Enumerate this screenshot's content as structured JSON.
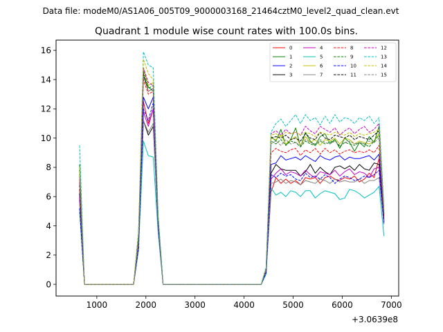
{
  "chart_data": {
    "type": "line",
    "suptitle": "Data file: modeM0/AS1A06_005T09_9000003168_21464cztM0_level2_quad_clean.evt",
    "title": "Quadrant 1 module wise count rates with 100.0s bins.",
    "xlabel": "",
    "ylabel": "",
    "x_offset_label": "+3.0639e8",
    "xlim": [
      170,
      7150
    ],
    "ylim": [
      -0.8,
      16.7
    ],
    "x_ticks": [
      1000,
      2000,
      3000,
      4000,
      5000,
      6000,
      7000
    ],
    "y_ticks": [
      0,
      2,
      4,
      6,
      8,
      10,
      12,
      14,
      16
    ],
    "grid": false,
    "legend_location": "upper right",
    "legend_columns": 4,
    "x": [
      650,
      750,
      1750,
      1850,
      1950,
      2050,
      2150,
      2250,
      2350,
      4350,
      4450,
      4550,
      4650,
      4750,
      4850,
      4950,
      5050,
      5150,
      5250,
      5350,
      5450,
      5550,
      5650,
      5750,
      5850,
      5950,
      6050,
      6150,
      6250,
      6350,
      6450,
      6550,
      6650,
      6750,
      6850
    ],
    "series": [
      {
        "name": "0",
        "color": "#ff0000",
        "dash": "solid",
        "values": [
          6.5,
          0,
          0,
          2.5,
          12.5,
          11,
          12,
          4,
          0,
          0,
          0.8,
          6.3,
          7.3,
          6.9,
          7.2,
          6.9,
          7.1,
          6.8,
          7.3,
          7.2,
          7.3,
          6.9,
          7.3,
          7.4,
          7.2,
          7.1,
          7.3,
          7.2,
          7.4,
          7.0,
          7.2,
          7.6,
          7.3,
          8.6,
          4.6
        ]
      },
      {
        "name": "1",
        "color": "#008000",
        "dash": "solid",
        "values": [
          8.2,
          0,
          0,
          3.5,
          14.2,
          13.5,
          13.2,
          4.5,
          0,
          0,
          1.1,
          10.1,
          9.8,
          10.6,
          9.5,
          9.9,
          10.7,
          9.4,
          10.4,
          9.8,
          9.5,
          10.1,
          10.3,
          9.6,
          9.9,
          9.3,
          10.0,
          9.7,
          9.1,
          9.7,
          9.4,
          10.1,
          9.7,
          10.8,
          5.0
        ]
      },
      {
        "name": "2",
        "color": "#0000ff",
        "dash": "solid",
        "values": [
          5.8,
          0,
          0,
          2.8,
          12.8,
          12.0,
          12.8,
          4.2,
          0,
          0,
          0.9,
          8.2,
          8.3,
          8.8,
          8.5,
          8.6,
          8.7,
          8.5,
          8.8,
          8.6,
          8.4,
          8.8,
          8.6,
          8.5,
          8.7,
          8.8,
          8.5,
          8.7,
          8.6,
          8.6,
          8.7,
          8.8,
          8.5,
          8.9,
          4.3
        ]
      },
      {
        "name": "3",
        "color": "#000000",
        "dash": "solid",
        "values": [
          6.2,
          0,
          0,
          2.8,
          11.2,
          10.2,
          10.8,
          4.0,
          0,
          0,
          0.9,
          7.6,
          8.2,
          7.9,
          7.8,
          7.8,
          7.8,
          7.4,
          7.7,
          8.2,
          7.6,
          8.0,
          7.7,
          7.5,
          8.0,
          8.1,
          7.9,
          8.1,
          7.8,
          8.2,
          7.9,
          7.8,
          8.3,
          8.2,
          4.4
        ]
      },
      {
        "name": "4",
        "color": "#bf00bf",
        "dash": "solid",
        "values": [
          6.0,
          0,
          0,
          2.6,
          11.8,
          10.8,
          12.0,
          4.1,
          0,
          0,
          0.9,
          7.2,
          7.6,
          7.9,
          7.5,
          7.7,
          7.6,
          7.4,
          7.8,
          7.5,
          7.3,
          7.7,
          7.6,
          7.5,
          7.8,
          7.4,
          7.7,
          7.9,
          7.5,
          7.7,
          7.6,
          7.3,
          7.9,
          8.0,
          4.3
        ]
      },
      {
        "name": "5",
        "color": "#00bfbf",
        "dash": "solid",
        "values": [
          5.0,
          0,
          0,
          2.3,
          9.8,
          8.8,
          8.7,
          3.5,
          0,
          0,
          0.7,
          6.6,
          6.1,
          6.3,
          6.0,
          6.4,
          6.3,
          6.0,
          6.4,
          6.4,
          5.9,
          6.2,
          6.4,
          6.3,
          6.2,
          5.8,
          5.9,
          6.5,
          6.4,
          6.2,
          5.9,
          6.1,
          6.3,
          6.7,
          3.3
        ]
      },
      {
        "name": "6",
        "color": "#bfbf00",
        "dash": "solid",
        "values": [
          7.5,
          0,
          0,
          3.0,
          14.8,
          13.6,
          13.8,
          4.5,
          0,
          0,
          1.0,
          10.0,
          9.9,
          10.2,
          9.6,
          9.9,
          10.1,
          9.5,
          10.1,
          9.7,
          9.9,
          9.5,
          9.9,
          9.8,
          10.0,
          9.6,
          10.0,
          9.9,
          9.6,
          9.8,
          9.7,
          9.6,
          9.8,
          10.3,
          4.9
        ]
      },
      {
        "name": "7",
        "color": "#808080",
        "dash": "solid",
        "values": [
          5.5,
          0,
          0,
          2.4,
          11.2,
          10.4,
          11.0,
          3.8,
          0,
          0,
          0.9,
          6.9,
          7.0,
          7.2,
          6.9,
          7.1,
          7.0,
          6.8,
          7.1,
          7.0,
          6.9,
          7.2,
          7.1,
          6.9,
          7.2,
          7.0,
          7.1,
          7.0,
          7.0,
          7.2,
          6.9,
          7.1,
          7.1,
          7.3,
          4.1
        ]
      },
      {
        "name": "8",
        "color": "#ff0000",
        "dash": "dashed",
        "values": [
          7.0,
          0,
          0,
          2.8,
          14.0,
          13.0,
          13.2,
          4.3,
          0,
          0,
          1.0,
          9.0,
          9.3,
          9.1,
          9.0,
          9.2,
          9.3,
          8.8,
          9.2,
          9.0,
          9.3,
          8.9,
          9.3,
          9.0,
          9.2,
          8.9,
          9.1,
          9.2,
          9.0,
          9.1,
          9.0,
          9.2,
          9.0,
          9.5,
          4.7
        ]
      },
      {
        "name": "9",
        "color": "#008000",
        "dash": "dashed",
        "values": [
          7.8,
          0,
          0,
          3.1,
          14.6,
          13.4,
          13.6,
          4.4,
          0,
          0,
          1.1,
          9.8,
          9.6,
          9.9,
          9.5,
          9.8,
          9.7,
          9.4,
          9.8,
          9.6,
          9.5,
          9.8,
          9.6,
          9.7,
          9.9,
          9.4,
          9.7,
          9.6,
          9.5,
          9.7,
          9.6,
          9.4,
          9.8,
          10.2,
          4.8
        ]
      },
      {
        "name": "10",
        "color": "#0000ff",
        "dash": "dashed",
        "values": [
          5.2,
          0,
          0,
          2.5,
          12.0,
          11.2,
          12.4,
          4.0,
          0,
          0,
          0.8,
          7.5,
          7.3,
          7.6,
          7.4,
          7.5,
          7.2,
          7.1,
          7.6,
          7.3,
          7.4,
          7.2,
          7.5,
          7.3,
          6.9,
          7.2,
          7.4,
          7.3,
          7.1,
          7.2,
          7.4,
          7.3,
          7.5,
          7.8,
          4.2
        ]
      },
      {
        "name": "11",
        "color": "#000000",
        "dash": "dashed",
        "values": [
          6.8,
          0,
          0,
          3.0,
          14.4,
          13.2,
          13.4,
          4.4,
          0,
          0,
          1.0,
          10.0,
          10.1,
          10.0,
          10.2,
          9.9,
          10.0,
          9.8,
          10.3,
          10.0,
          9.9,
          10.4,
          10.0,
          9.9,
          10.2,
          10.1,
          10.0,
          10.2,
          9.9,
          10.1,
          10.0,
          9.9,
          10.2,
          10.5,
          4.8
        ]
      },
      {
        "name": "12",
        "color": "#bf00bf",
        "dash": "dashed",
        "values": [
          7.2,
          0,
          0,
          3.2,
          14.8,
          13.8,
          13.6,
          4.5,
          0,
          0,
          1.1,
          10.3,
          10.5,
          10.2,
          10.6,
          10.3,
          10.4,
          10.2,
          10.8,
          10.5,
          10.3,
          10.8,
          10.6,
          10.4,
          10.7,
          10.2,
          10.5,
          10.7,
          10.3,
          10.6,
          10.8,
          10.4,
          10.6,
          11.0,
          5.0
        ]
      },
      {
        "name": "13",
        "color": "#00bfbf",
        "dash": "dashed",
        "values": [
          9.5,
          0,
          0,
          3.5,
          15.9,
          15.0,
          14.8,
          4.8,
          0,
          0,
          1.2,
          10.4,
          11.0,
          11.3,
          10.8,
          11.2,
          11.6,
          11.0,
          11.6,
          11.2,
          11.4,
          10.9,
          11.5,
          11.0,
          11.6,
          11.1,
          11.4,
          11.3,
          11.0,
          11.4,
          11.2,
          11.5,
          11.0,
          11.4,
          5.3
        ]
      },
      {
        "name": "14",
        "color": "#bfbf00",
        "dash": "dashed",
        "values": [
          8.0,
          0,
          0,
          3.3,
          15.4,
          14.4,
          14.0,
          4.6,
          0,
          0,
          1.1,
          10.2,
          10.3,
          10.1,
          10.4,
          10.3,
          10.4,
          10.2,
          10.4,
          10.3,
          10.1,
          10.4,
          10.3,
          10.2,
          10.4,
          10.3,
          10.2,
          10.4,
          10.1,
          10.3,
          10.2,
          10.3,
          10.4,
          10.6,
          5.0
        ]
      },
      {
        "name": "15",
        "color": "#808080",
        "dash": "dashed",
        "values": [
          7.4,
          0,
          0,
          3.0,
          14.2,
          13.2,
          13.4,
          4.4,
          0,
          0,
          1.0,
          9.6,
          9.8,
          9.5,
          9.9,
          9.6,
          9.7,
          9.5,
          9.9,
          9.7,
          9.6,
          9.9,
          9.7,
          9.6,
          9.8,
          9.5,
          9.7,
          9.8,
          9.6,
          9.7,
          9.6,
          9.8,
          9.7,
          10.0,
          4.8
        ]
      }
    ]
  }
}
